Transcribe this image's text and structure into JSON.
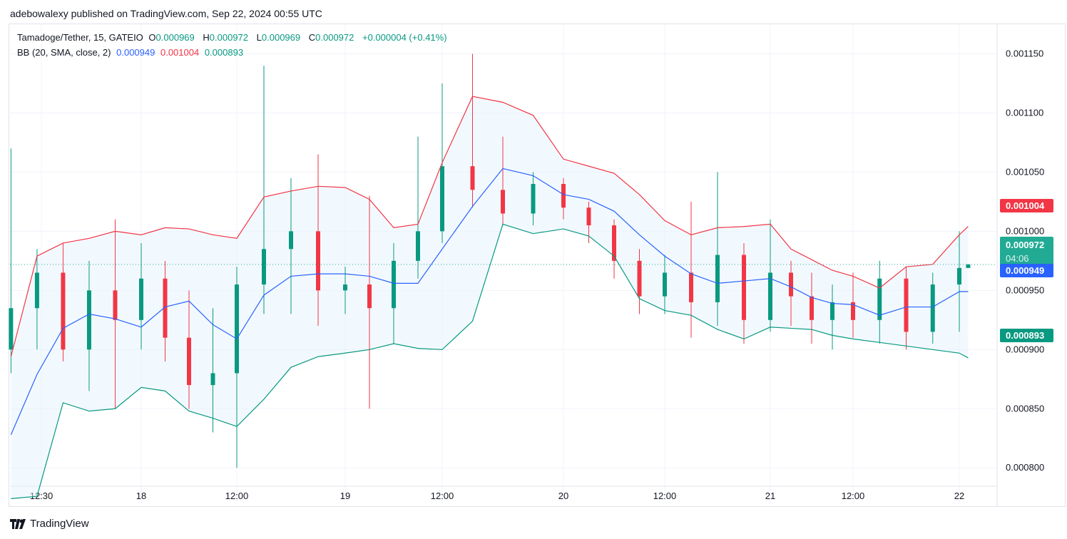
{
  "header": {
    "published": "adebowalexy published on TradingView.com, Sep 22, 2024 00:55 UTC"
  },
  "legend": {
    "symbol": "Tamadoge/Tether, 15, GATEIO",
    "o_label": "O",
    "o": "0.000969",
    "h_label": "H",
    "h": "0.000972",
    "l_label": "L",
    "l": "0.000969",
    "c_label": "C",
    "c": "0.000972",
    "change": "+0.000004 (+0.41%)",
    "bb_label": "BB (20, SMA, close, 2)",
    "bb_basis": "0.000949",
    "bb_upper": "0.001004",
    "bb_lower": "0.000893"
  },
  "badges": {
    "upper": "0.001004",
    "last": "0.000972",
    "countdown": "04:06",
    "basis": "0.000949",
    "lower": "0.000893"
  },
  "colors": {
    "up": "#089981",
    "down": "#f23645",
    "basis": "#2962ff",
    "upper": "#f23645",
    "lower": "#089981",
    "fill": "#e3f2fd"
  },
  "footer": {
    "brand": "TradingView"
  },
  "chart_data": {
    "type": "candlestick",
    "ylim": [
      0.00077,
      0.001175
    ],
    "y_ticks": [
      "0.001150",
      "0.001100",
      "0.001050",
      "0.001000",
      "0.000950",
      "0.000900",
      "0.000850",
      "0.000800"
    ],
    "x_ticks": [
      {
        "label": "12:30",
        "t": "2024-09-17 12:30"
      },
      {
        "label": "18",
        "t": "2024-09-18 00:00"
      },
      {
        "label": "12:00",
        "t": "2024-09-18 12:00"
      },
      {
        "label": "19",
        "t": "2024-09-19 00:00"
      },
      {
        "label": "12:00",
        "t": "2024-09-19 12:00"
      },
      {
        "label": "20",
        "t": "2024-09-20 00:00"
      },
      {
        "label": "12:00",
        "t": "2024-09-20 12:00"
      },
      {
        "label": "21",
        "t": "2024-09-21 00:00"
      },
      {
        "label": "12:00",
        "t": "2024-09-21 12:00"
      },
      {
        "label": "22",
        "t": "2024-09-22 00:00"
      }
    ],
    "times": [
      "2024-09-17 09:00",
      "2024-09-17 12:00",
      "2024-09-17 15:00",
      "2024-09-17 18:00",
      "2024-09-17 21:00",
      "2024-09-18 00:00",
      "2024-09-18 03:00",
      "2024-09-18 06:00",
      "2024-09-18 09:00",
      "2024-09-18 12:00",
      "2024-09-18 15:00",
      "2024-09-18 18:00",
      "2024-09-18 21:00",
      "2024-09-19 00:00",
      "2024-09-19 03:00",
      "2024-09-19 06:00",
      "2024-09-19 09:00",
      "2024-09-19 12:00",
      "2024-09-19 15:00",
      "2024-09-19 18:00",
      "2024-09-19 21:00",
      "2024-09-20 00:00",
      "2024-09-20 03:00",
      "2024-09-20 06:00",
      "2024-09-20 09:00",
      "2024-09-20 12:00",
      "2024-09-20 15:00",
      "2024-09-20 18:00",
      "2024-09-20 21:00",
      "2024-09-21 00:00",
      "2024-09-21 03:00",
      "2024-09-21 06:00",
      "2024-09-21 09:00",
      "2024-09-21 12:00",
      "2024-09-21 15:00",
      "2024-09-21 18:00",
      "2024-09-21 21:00",
      "2024-09-22 00:00",
      "2024-09-22 01:00"
    ],
    "ohlc": [
      [
        0.0009,
        0.00107,
        0.00088,
        0.000935
      ],
      [
        0.000935,
        0.000985,
        0.0009,
        0.000965
      ],
      [
        0.000965,
        0.00099,
        0.00089,
        0.0009
      ],
      [
        0.0009,
        0.000975,
        0.000865,
        0.00095
      ],
      [
        0.00095,
        0.00101,
        0.00085,
        0.000925
      ],
      [
        0.000925,
        0.00099,
        0.0009,
        0.00096
      ],
      [
        0.00096,
        0.000975,
        0.00089,
        0.00091
      ],
      [
        0.00091,
        0.00095,
        0.00085,
        0.00087
      ],
      [
        0.00087,
        0.000935,
        0.00083,
        0.00088
      ],
      [
        0.00088,
        0.00097,
        0.0008,
        0.000955
      ],
      [
        0.000955,
        0.00114,
        0.00093,
        0.000985
      ],
      [
        0.000985,
        0.001045,
        0.00093,
        0.001
      ],
      [
        0.001,
        0.001065,
        0.00092,
        0.00095
      ],
      [
        0.00095,
        0.00097,
        0.00093,
        0.000955
      ],
      [
        0.000955,
        0.00103,
        0.00085,
        0.000935
      ],
      [
        0.000935,
        0.00099,
        0.000905,
        0.000975
      ],
      [
        0.000975,
        0.00108,
        0.00096,
        0.001
      ],
      [
        0.001,
        0.001125,
        0.00099,
        0.001055
      ],
      [
        0.001055,
        0.00115,
        0.00102,
        0.001035
      ],
      [
        0.001035,
        0.00108,
        0.001005,
        0.001015
      ],
      [
        0.001015,
        0.00105,
        0.001005,
        0.00104
      ],
      [
        0.00104,
        0.001045,
        0.00101,
        0.00102
      ],
      [
        0.00102,
        0.001025,
        0.00099,
        0.001005
      ],
      [
        0.001005,
        0.00101,
        0.00096,
        0.000975
      ],
      [
        0.000975,
        0.000985,
        0.00093,
        0.000945
      ],
      [
        0.000945,
        0.00098,
        0.00093,
        0.000965
      ],
      [
        0.000965,
        0.001025,
        0.00091,
        0.00094
      ],
      [
        0.00094,
        0.00105,
        0.00092,
        0.00098
      ],
      [
        0.00098,
        0.00099,
        0.000905,
        0.000925
      ],
      [
        0.000925,
        0.00101,
        0.000915,
        0.000965
      ],
      [
        0.000965,
        0.000975,
        0.00092,
        0.000945
      ],
      [
        0.000945,
        0.000965,
        0.000905,
        0.000925
      ],
      [
        0.000925,
        0.000955,
        0.0009,
        0.00094
      ],
      [
        0.00094,
        0.000965,
        0.00091,
        0.000925
      ],
      [
        0.000925,
        0.000975,
        0.000905,
        0.00096
      ],
      [
        0.00096,
        0.00097,
        0.0009,
        0.000915
      ],
      [
        0.000915,
        0.000965,
        0.000905,
        0.000955
      ],
      [
        0.000955,
        0.001,
        0.000915,
        0.000969
      ],
      [
        0.000969,
        0.000972,
        0.000969,
        0.000972
      ]
    ],
    "bb_upper": [
      0.000894,
      0.000979,
      0.00099,
      0.000994,
      0.001,
      0.000997,
      0.001003,
      0.001002,
      0.000997,
      0.000994,
      0.001029,
      0.001034,
      0.001038,
      0.001037,
      0.001027,
      0.001003,
      0.001006,
      0.001058,
      0.001114,
      0.001109,
      0.001098,
      0.001061,
      0.001055,
      0.001049,
      0.001031,
      0.001009,
      0.000997,
      0.001003,
      0.001004,
      0.001006,
      0.000985,
      0.000976,
      0.000967,
      0.000962,
      0.000952,
      0.00097,
      0.000972,
      0.000997,
      0.001004
    ],
    "bb_basis": [
      0.000828,
      0.000879,
      0.000918,
      0.00093,
      0.000926,
      0.000919,
      0.000936,
      0.000941,
      0.000921,
      0.000909,
      0.000946,
      0.000962,
      0.000964,
      0.000964,
      0.000962,
      0.000956,
      0.000956,
      0.000985,
      0.001021,
      0.001053,
      0.001047,
      0.001031,
      0.001027,
      0.001017,
      0.000997,
      0.000979,
      0.000964,
      0.000956,
      0.000958,
      0.00096,
      0.000953,
      0.000944,
      0.000939,
      0.000938,
      0.000929,
      0.000936,
      0.000936,
      0.000949,
      0.000949
    ],
    "bb_lower": [
      0.000774,
      0.000776,
      0.000855,
      0.000848,
      0.00085,
      0.000868,
      0.000865,
      0.000848,
      0.000842,
      0.000835,
      0.000858,
      0.000885,
      0.000894,
      0.000897,
      0.0009,
      0.000905,
      0.000901,
      0.0009,
      0.000924,
      0.001006,
      0.000998,
      0.001002,
      0.000996,
      0.000979,
      0.000943,
      0.000933,
      0.000929,
      0.000917,
      0.000909,
      0.000919,
      0.000918,
      0.000917,
      0.000912,
      0.000909,
      0.000906,
      0.000903,
      0.0009,
      0.000897,
      0.000893
    ],
    "last_price": 0.000972
  }
}
